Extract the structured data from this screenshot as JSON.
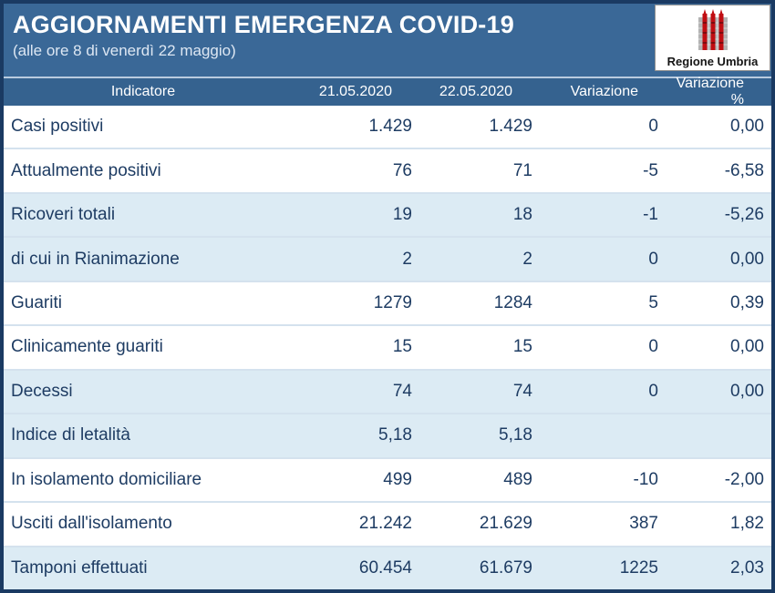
{
  "header": {
    "title": "AGGIORNAMENTI EMERGENZA COVID-19",
    "subtitle": "(alle ore 8 di venerdì 22 maggio)"
  },
  "logo": {
    "text": "Regione Umbria",
    "emblem": "umbria-three-ceri-emblem"
  },
  "chart_data": {
    "type": "table",
    "title": "AGGIORNAMENTI EMERGENZA COVID-19",
    "subtitle": "(alle ore 8 di venerdì 22 maggio)",
    "columns": [
      "Indicatore",
      "21.05.2020",
      "22.05.2020",
      "Variazione",
      "Variazione %"
    ],
    "rows": [
      {
        "label": "Casi positivi",
        "v1": "1.429",
        "v2": "1.429",
        "variation": "0",
        "variation_pct": "0,00",
        "shaded": false
      },
      {
        "label": "Attualmente positivi",
        "v1": "76",
        "v2": "71",
        "variation": "-5",
        "variation_pct": "-6,58",
        "shaded": false
      },
      {
        "label": "Ricoveri totali",
        "v1": "19",
        "v2": "18",
        "variation": "-1",
        "variation_pct": "-5,26",
        "shaded": true
      },
      {
        "label": "di cui in Rianimazione",
        "v1": "2",
        "v2": "2",
        "variation": "0",
        "variation_pct": "0,00",
        "shaded": true
      },
      {
        "label": "Guariti",
        "v1": "1279",
        "v2": "1284",
        "variation": "5",
        "variation_pct": "0,39",
        "shaded": false
      },
      {
        "label": "Clinicamente guariti",
        "v1": "15",
        "v2": "15",
        "variation": "0",
        "variation_pct": "0,00",
        "shaded": false
      },
      {
        "label": "Decessi",
        "v1": "74",
        "v2": "74",
        "variation": "0",
        "variation_pct": "0,00",
        "shaded": true
      },
      {
        "label": "Indice di letalità",
        "v1": "5,18",
        "v2": "5,18",
        "variation": "",
        "variation_pct": "",
        "shaded": true
      },
      {
        "label": "In isolamento domiciliare",
        "v1": "499",
        "v2": "489",
        "variation": "-10",
        "variation_pct": "-2,00",
        "shaded": false
      },
      {
        "label": "Usciti dall'isolamento",
        "v1": "21.242",
        "v2": "21.629",
        "variation": "387",
        "variation_pct": "1,82",
        "shaded": false
      },
      {
        "label": "Tamponi effettuati",
        "v1": "60.454",
        "v2": "61.679",
        "variation": "1225",
        "variation_pct": "2,03",
        "shaded": true
      }
    ]
  },
  "colors": {
    "frame_border": "#1a3a62",
    "header_bg": "#3a6897",
    "table_header_bg": "#35628f",
    "shaded_row_bg": "#dcebf4",
    "row_text": "#1e3c63",
    "header_text": "#ffffff",
    "logo_red": "#c00d12"
  }
}
